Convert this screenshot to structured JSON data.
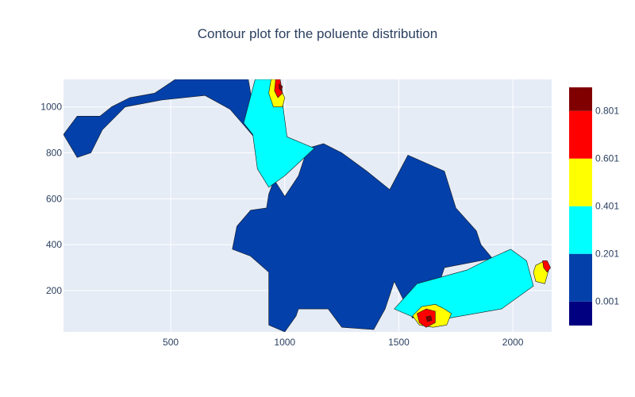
{
  "chart_data": {
    "type": "heatmap",
    "subtype": "contour",
    "title": "Contour plot for the poluente distribution",
    "xlabel": "",
    "ylabel": "",
    "xlim": [
      30,
      2170
    ],
    "ylim": [
      20,
      1120
    ],
    "x_ticks": [
      500,
      1000,
      1500,
      2000
    ],
    "y_ticks": [
      200,
      400,
      600,
      800,
      1000
    ],
    "grid": true,
    "colorscale": [
      {
        "from": -0.1,
        "to": 0.001,
        "color": "#000080"
      },
      {
        "from": 0.001,
        "to": 0.201,
        "color": "#0340aa"
      },
      {
        "from": 0.201,
        "to": 0.401,
        "color": "#00ffff"
      },
      {
        "from": 0.401,
        "to": 0.601,
        "color": "#ffff00"
      },
      {
        "from": 0.601,
        "to": 0.801,
        "color": "#ff0000"
      },
      {
        "from": 0.801,
        "to": 0.9,
        "color": "#800000"
      }
    ],
    "colorbar_ticks": [
      "0.001",
      "0.201",
      "0.401",
      "0.601",
      "0.801"
    ],
    "regions": [
      {
        "level": "0.001-0.201",
        "color": "#0340aa",
        "points": [
          [
            30,
            880
          ],
          [
            90,
            960
          ],
          [
            190,
            960
          ],
          [
            240,
            1000
          ],
          [
            320,
            1040
          ],
          [
            430,
            1060
          ],
          [
            520,
            1120
          ],
          [
            840,
            1120
          ],
          [
            870,
            950
          ],
          [
            880,
            820
          ],
          [
            960,
            700
          ],
          [
            930,
            620
          ],
          [
            920,
            560
          ],
          [
            850,
            550
          ],
          [
            790,
            480
          ],
          [
            770,
            380
          ],
          [
            850,
            350
          ],
          [
            930,
            280
          ],
          [
            930,
            50
          ],
          [
            1000,
            20
          ],
          [
            1050,
            90
          ],
          [
            1060,
            120
          ],
          [
            1190,
            120
          ],
          [
            1250,
            40
          ],
          [
            1390,
            30
          ],
          [
            1440,
            120
          ],
          [
            1480,
            240
          ],
          [
            1560,
            80
          ],
          [
            1640,
            120
          ],
          [
            1700,
            300
          ],
          [
            1910,
            340
          ],
          [
            1860,
            400
          ],
          [
            1840,
            460
          ],
          [
            1750,
            560
          ],
          [
            1700,
            720
          ],
          [
            1540,
            790
          ],
          [
            1460,
            640
          ],
          [
            1360,
            720
          ],
          [
            1250,
            800
          ],
          [
            1170,
            840
          ],
          [
            1100,
            820
          ],
          [
            1060,
            700
          ],
          [
            1000,
            610
          ],
          [
            930,
            720
          ],
          [
            890,
            840
          ],
          [
            830,
            910
          ],
          [
            760,
            990
          ],
          [
            650,
            1050
          ],
          [
            460,
            1030
          ],
          [
            300,
            1000
          ],
          [
            200,
            900
          ],
          [
            150,
            800
          ],
          [
            90,
            780
          ]
        ]
      },
      {
        "level": "0.201-0.401",
        "color": "#00ffff",
        "points": [
          [
            870,
            1120
          ],
          [
            950,
            1120
          ],
          [
            990,
            1020
          ],
          [
            1010,
            870
          ],
          [
            1130,
            820
          ],
          [
            1000,
            700
          ],
          [
            930,
            650
          ],
          [
            880,
            730
          ],
          [
            860,
            880
          ],
          [
            820,
            930
          ]
        ]
      },
      {
        "level": "0.201-0.401",
        "color": "#00ffff",
        "points": [
          [
            1480,
            120
          ],
          [
            1580,
            230
          ],
          [
            1800,
            290
          ],
          [
            1900,
            340
          ],
          [
            1990,
            380
          ],
          [
            2060,
            330
          ],
          [
            2090,
            220
          ],
          [
            1950,
            120
          ],
          [
            1720,
            80
          ],
          [
            1620,
            60
          ]
        ]
      },
      {
        "level": "0.401-0.601",
        "color": "#ffff00",
        "points": [
          [
            940,
            1120
          ],
          [
            960,
            1120
          ],
          [
            1000,
            1040
          ],
          [
            990,
            1000
          ],
          [
            950,
            1000
          ],
          [
            930,
            1060
          ]
        ]
      },
      {
        "level": "0.401-0.601",
        "color": "#ffff00",
        "points": [
          [
            1560,
            90
          ],
          [
            1600,
            130
          ],
          [
            1660,
            140
          ],
          [
            1700,
            120
          ],
          [
            1730,
            100
          ],
          [
            1710,
            50
          ],
          [
            1650,
            40
          ],
          [
            1590,
            50
          ]
        ]
      },
      {
        "level": "0.401-0.601",
        "color": "#ffff00",
        "points": [
          [
            2100,
            310
          ],
          [
            2140,
            330
          ],
          [
            2160,
            300
          ],
          [
            2140,
            230
          ],
          [
            2100,
            240
          ],
          [
            2090,
            280
          ]
        ]
      },
      {
        "level": "0.601-0.801",
        "color": "#ff0000",
        "points": [
          [
            960,
            1120
          ],
          [
            980,
            1120
          ],
          [
            990,
            1060
          ],
          [
            970,
            1040
          ],
          [
            955,
            1070
          ]
        ]
      },
      {
        "level": "0.601-0.801",
        "color": "#ff0000",
        "points": [
          [
            1580,
            100
          ],
          [
            1620,
            120
          ],
          [
            1660,
            110
          ],
          [
            1660,
            60
          ],
          [
            1620,
            40
          ],
          [
            1590,
            60
          ]
        ]
      },
      {
        "level": "0.601-0.801",
        "color": "#ff0000",
        "points": [
          [
            2130,
            330
          ],
          [
            2150,
            330
          ],
          [
            2165,
            300
          ],
          [
            2150,
            280
          ],
          [
            2135,
            300
          ]
        ]
      },
      {
        "level": "0.801-0.9",
        "color": "#800000",
        "points": [
          [
            975,
            1100
          ],
          [
            990,
            1090
          ],
          [
            985,
            1070
          ],
          [
            975,
            1080
          ]
        ]
      },
      {
        "level": "0.801-0.9",
        "color": "#800000",
        "points": [
          [
            1620,
            85
          ],
          [
            1640,
            90
          ],
          [
            1645,
            70
          ],
          [
            1625,
            65
          ]
        ]
      }
    ]
  }
}
